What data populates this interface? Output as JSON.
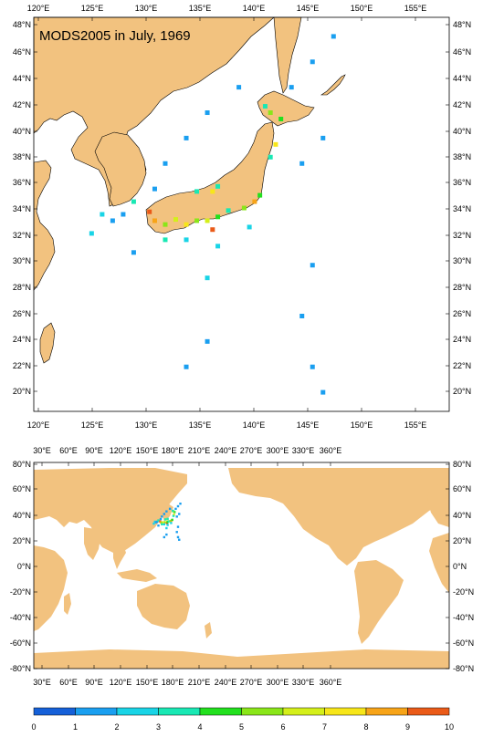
{
  "title": "MODS2005 in July, 1969",
  "colors": {
    "land": "#f2c27f",
    "ocean": "#ffffff",
    "frame": "#000000"
  },
  "top_map": {
    "name": "japan-regional-map",
    "lon_ticks": [
      "120°E",
      "125°E",
      "130°E",
      "135°E",
      "140°E",
      "145°E",
      "150°E",
      "155°E"
    ],
    "lat_ticks": [
      "48°N",
      "46°N",
      "44°N",
      "42°N",
      "40°N",
      "38°N",
      "36°N",
      "34°N",
      "32°N",
      "30°N",
      "28°N",
      "26°N",
      "24°N",
      "22°N",
      "20°N"
    ],
    "extent": {
      "lon": [
        118.5,
        158
      ],
      "lat": [
        18.5,
        49.5
      ]
    }
  },
  "bottom_map": {
    "name": "world-map",
    "lon_ticks": [
      "30°E",
      "60°E",
      "90°E",
      "120°E",
      "150°E",
      "180°E",
      "210°E",
      "240°E",
      "270°E",
      "300°E",
      "330°E",
      "360°E"
    ],
    "lat_ticks": [
      "80°N",
      "60°N",
      "40°N",
      "20°N",
      "0°N",
      "-20°N",
      "-40°N",
      "-60°N",
      "-80°N"
    ],
    "extent": {
      "lon": [
        20,
        380
      ],
      "lat": [
        -80,
        80
      ]
    }
  },
  "colorbar": {
    "labels": [
      "0",
      "1",
      "2",
      "3",
      "4",
      "5",
      "6",
      "7",
      "8",
      "9",
      "10"
    ],
    "colors": [
      "#1560d8",
      "#1a9ff0",
      "#19d4e6",
      "#19e8b4",
      "#22e01e",
      "#8ae619",
      "#d4ef1a",
      "#f7e619",
      "#f7a418",
      "#ea5a18"
    ]
  },
  "chart_data": {
    "type": "heatmap",
    "title": "MODS2005 in July, 1969",
    "value_range": [
      0,
      10
    ],
    "cells": [
      {
        "lon": 125,
        "lat": 34,
        "value": 2
      },
      {
        "lon": 126,
        "lat": 33.5,
        "value": 1
      },
      {
        "lon": 127,
        "lat": 34,
        "value": 1
      },
      {
        "lon": 128,
        "lat": 35,
        "value": 3
      },
      {
        "lon": 129.5,
        "lat": 34.2,
        "value": 9
      },
      {
        "lon": 130,
        "lat": 33.5,
        "value": 8
      },
      {
        "lon": 131,
        "lat": 33.2,
        "value": 5
      },
      {
        "lon": 132,
        "lat": 33.6,
        "value": 6
      },
      {
        "lon": 133,
        "lat": 33.2,
        "value": 7
      },
      {
        "lon": 134,
        "lat": 33.5,
        "value": 5
      },
      {
        "lon": 135,
        "lat": 33.5,
        "value": 6
      },
      {
        "lon": 135.5,
        "lat": 32.8,
        "value": 9
      },
      {
        "lon": 136,
        "lat": 33.8,
        "value": 4
      },
      {
        "lon": 137,
        "lat": 34.3,
        "value": 3
      },
      {
        "lon": 138.5,
        "lat": 34.5,
        "value": 5
      },
      {
        "lon": 139.5,
        "lat": 35,
        "value": 8
      },
      {
        "lon": 140,
        "lat": 35.5,
        "value": 4
      },
      {
        "lon": 135.5,
        "lat": 35.8,
        "value": 7
      },
      {
        "lon": 136,
        "lat": 36.2,
        "value": 3
      },
      {
        "lon": 134,
        "lat": 35.8,
        "value": 3
      },
      {
        "lon": 141.5,
        "lat": 39.5,
        "value": 7
      },
      {
        "lon": 141,
        "lat": 38.5,
        "value": 3
      },
      {
        "lon": 142,
        "lat": 41.5,
        "value": 4
      },
      {
        "lon": 141,
        "lat": 42,
        "value": 5
      },
      {
        "lon": 140.5,
        "lat": 42.5,
        "value": 3
      },
      {
        "lon": 131,
        "lat": 32,
        "value": 3
      },
      {
        "lon": 133,
        "lat": 32,
        "value": 2
      },
      {
        "lon": 136,
        "lat": 31.5,
        "value": 2
      },
      {
        "lon": 135,
        "lat": 29,
        "value": 2
      },
      {
        "lon": 139,
        "lat": 33,
        "value": 2
      },
      {
        "lon": 143,
        "lat": 44,
        "value": 1
      },
      {
        "lon": 145,
        "lat": 46,
        "value": 1
      },
      {
        "lon": 147,
        "lat": 48,
        "value": 1
      },
      {
        "lon": 146,
        "lat": 40,
        "value": 1
      },
      {
        "lon": 144,
        "lat": 38,
        "value": 1
      },
      {
        "lon": 145,
        "lat": 30,
        "value": 1
      },
      {
        "lon": 144,
        "lat": 26,
        "value": 1
      },
      {
        "lon": 145,
        "lat": 22,
        "value": 1
      },
      {
        "lon": 146,
        "lat": 20,
        "value": 1
      },
      {
        "lon": 135,
        "lat": 24,
        "value": 1
      },
      {
        "lon": 133,
        "lat": 22,
        "value": 1
      },
      {
        "lon": 130,
        "lat": 36,
        "value": 1
      },
      {
        "lon": 131,
        "lat": 38,
        "value": 1
      },
      {
        "lon": 133,
        "lat": 40,
        "value": 1
      },
      {
        "lon": 135,
        "lat": 42,
        "value": 1
      },
      {
        "lon": 138,
        "lat": 44,
        "value": 1
      },
      {
        "lon": 128,
        "lat": 31,
        "value": 1
      },
      {
        "lon": 124,
        "lat": 32.5,
        "value": 2
      }
    ]
  }
}
